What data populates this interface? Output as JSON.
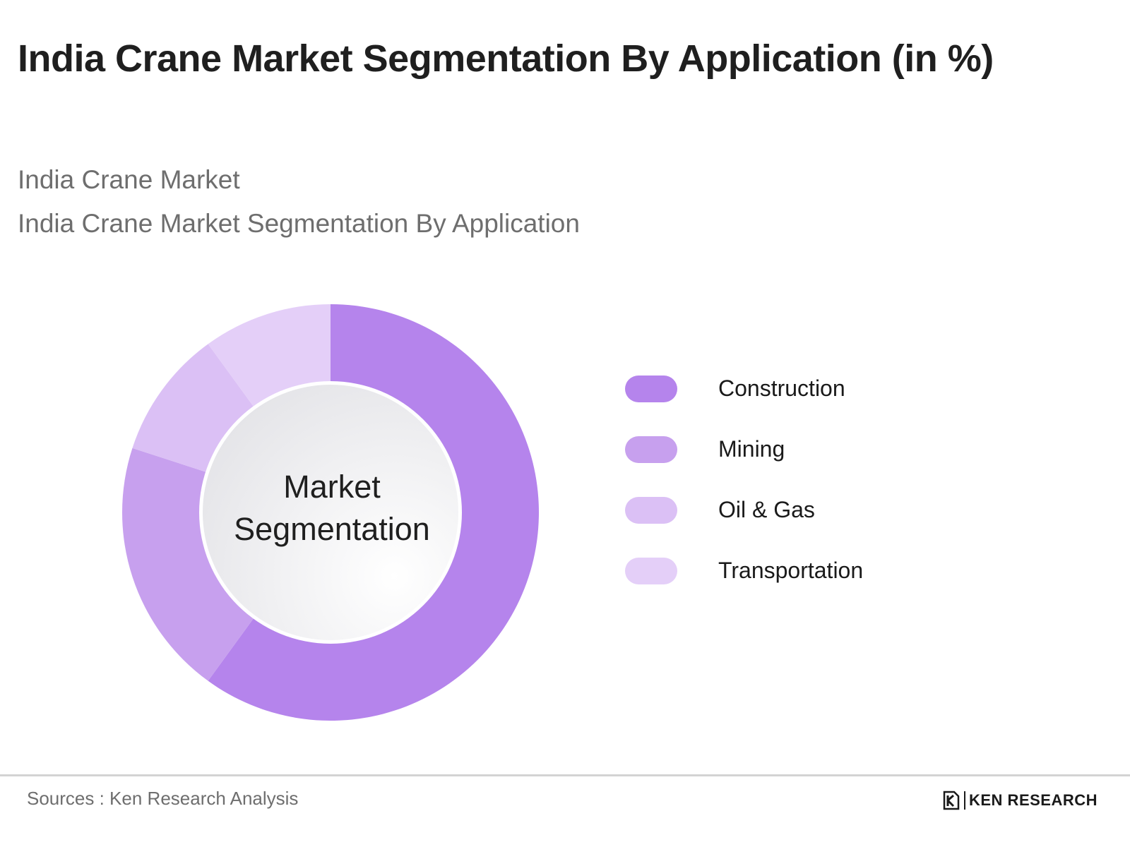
{
  "title": "India Crane Market Segmentation By Application (in %)",
  "subtitle_1": "India Crane Market",
  "subtitle_2": "India Crane Market Segmentation By Application",
  "center_label_line1": "Market",
  "center_label_line2": "Segmentation",
  "source": "Sources : Ken Research Analysis",
  "logo_text": "KEN RESEARCH",
  "chart_data": {
    "type": "pie",
    "donut": true,
    "legend_position": "right",
    "categories": [
      "Construction",
      "Mining",
      "Oil & Gas",
      "Transportation"
    ],
    "values": [
      60,
      20,
      10,
      10
    ],
    "colors": [
      "#b584ec",
      "#c7a0ee",
      "#dbc0f5",
      "#e4cff8"
    ]
  }
}
